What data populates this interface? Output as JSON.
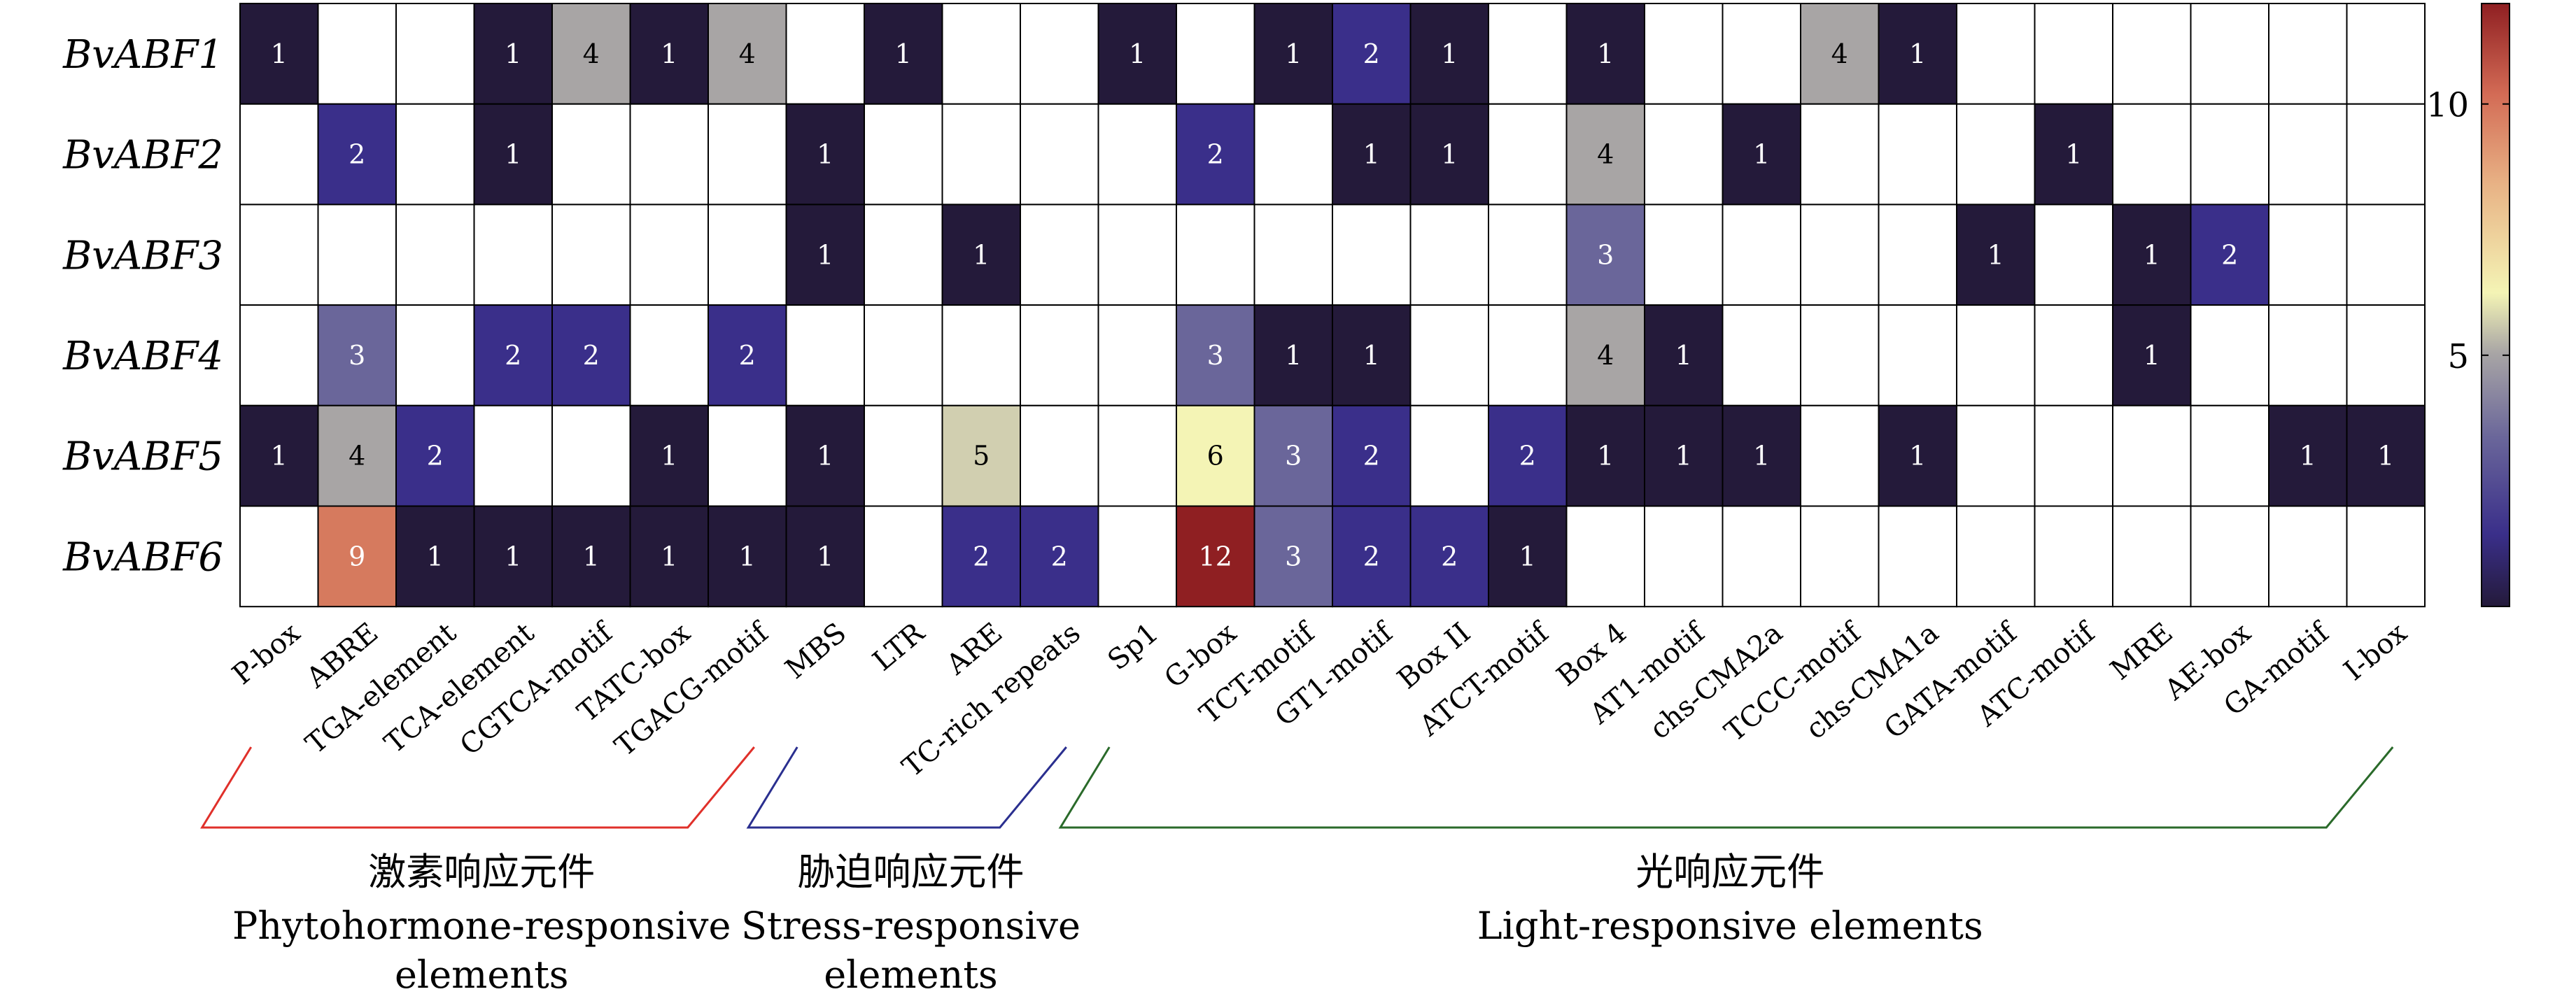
{
  "chart_data": {
    "type": "heatmap",
    "rows": [
      "BvABF1",
      "BvABF2",
      "BvABF3",
      "BvABF4",
      "BvABF5",
      "BvABF6"
    ],
    "columns": [
      "P-box",
      "ABRE",
      "TGA-element",
      "TCA-element",
      "CGTCA-motif",
      "TATC-box",
      "TGACG-motif",
      "MBS",
      "LTR",
      "ARE",
      "TC-rich repeats",
      "Sp1",
      "G-box",
      "TCT-motif",
      "GT1-motif",
      "Box II",
      "ATCT-motif",
      "Box 4",
      "AT1-motif",
      "chs-CMA2a",
      "TCCC-motif",
      "chs-CMA1a",
      "GATA-motif",
      "ATC-motif",
      "MRE",
      "AE-box",
      "GA-motif",
      "I-box"
    ],
    "values": [
      [
        1,
        null,
        null,
        1,
        4,
        1,
        4,
        null,
        1,
        null,
        null,
        1,
        null,
        1,
        2,
        1,
        null,
        1,
        null,
        null,
        4,
        1,
        null,
        null,
        null,
        null,
        null,
        null
      ],
      [
        null,
        2,
        null,
        1,
        null,
        null,
        null,
        1,
        null,
        null,
        null,
        null,
        2,
        null,
        1,
        1,
        null,
        4,
        null,
        1,
        null,
        null,
        null,
        1,
        null,
        null,
        null,
        null
      ],
      [
        null,
        null,
        null,
        null,
        null,
        null,
        null,
        1,
        null,
        1,
        null,
        null,
        null,
        null,
        null,
        null,
        null,
        3,
        null,
        null,
        null,
        null,
        1,
        null,
        1,
        2,
        null,
        null
      ],
      [
        null,
        3,
        null,
        2,
        2,
        null,
        2,
        null,
        null,
        null,
        null,
        null,
        3,
        1,
        1,
        null,
        null,
        4,
        1,
        null,
        null,
        null,
        null,
        null,
        1,
        null,
        null,
        null
      ],
      [
        1,
        4,
        2,
        null,
        null,
        1,
        null,
        1,
        null,
        5,
        null,
        null,
        6,
        3,
        2,
        null,
        2,
        1,
        1,
        1,
        null,
        1,
        null,
        null,
        null,
        null,
        1,
        1
      ],
      [
        null,
        9,
        1,
        1,
        1,
        1,
        1,
        1,
        null,
        2,
        2,
        null,
        12,
        3,
        2,
        2,
        1,
        null,
        null,
        null,
        null,
        null,
        null,
        null,
        null,
        null,
        null,
        null
      ]
    ],
    "colorbar": {
      "ticks": [
        5,
        10
      ],
      "range": [
        0,
        12
      ]
    },
    "groups": [
      {
        "zh": "激素响应元件",
        "en_line1": "Phytohormone-responsive",
        "en_line2": "elements",
        "color": "#e0302a",
        "from": 0,
        "to": 6
      },
      {
        "zh": "胁迫响应元件",
        "en_line1": "Stress-responsive",
        "en_line2": "elements",
        "color": "#2a2f8f",
        "from": 7,
        "to": 10
      },
      {
        "zh": "光响应元件",
        "en_line1": "Light-responsive elements",
        "en_line2": "",
        "color": "#2a6a2a",
        "from": 11,
        "to": 27
      }
    ]
  }
}
